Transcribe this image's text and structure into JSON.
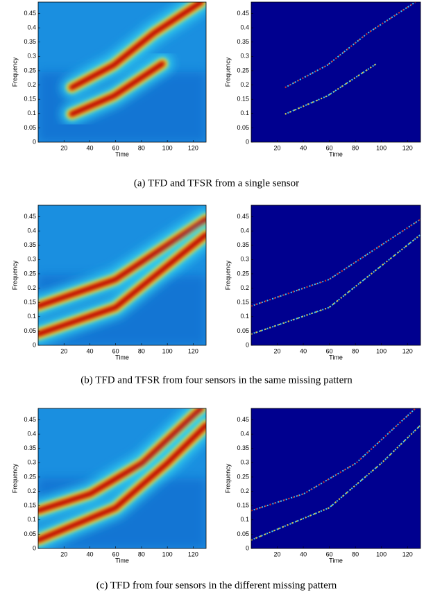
{
  "chart_data": [
    {
      "type": "heatmap",
      "xlabel": "Time",
      "ylabel": "Frequency",
      "xlim": [
        0,
        130
      ],
      "ylim": [
        0,
        0.49
      ],
      "xticks": [
        20,
        40,
        60,
        80,
        100,
        120
      ],
      "yticks": [
        0,
        0.05,
        0.1,
        0.15,
        0.2,
        0.25,
        0.3,
        0.35,
        0.4,
        0.45
      ]
    },
    {
      "type": "heatmap",
      "xlabel": "Time",
      "ylabel": "Frequency",
      "xlim": [
        0,
        130
      ],
      "ylim": [
        0,
        0.49
      ],
      "xticks": [
        20,
        40,
        60,
        80,
        100,
        120
      ],
      "yticks": [
        0,
        0.05,
        0.1,
        0.15,
        0.2,
        0.25,
        0.3,
        0.35,
        0.4,
        0.45
      ]
    },
    {
      "type": "heatmap",
      "xlabel": "Time",
      "ylabel": "Frequency",
      "xlim": [
        0,
        130
      ],
      "ylim": [
        0,
        0.49
      ],
      "xticks": [
        20,
        40,
        60,
        80,
        100,
        120
      ],
      "yticks": [
        0,
        0.05,
        0.1,
        0.15,
        0.2,
        0.25,
        0.3,
        0.35,
        0.4,
        0.45
      ]
    },
    {
      "type": "heatmap",
      "xlabel": "Time",
      "ylabel": "Frequency",
      "xlim": [
        0,
        130
      ],
      "ylim": [
        0,
        0.49
      ],
      "xticks": [
        20,
        40,
        60,
        80,
        100,
        120
      ],
      "yticks": [
        0,
        0.05,
        0.1,
        0.15,
        0.2,
        0.25,
        0.3,
        0.35,
        0.4,
        0.45
      ]
    },
    {
      "type": "heatmap",
      "xlabel": "Time",
      "ylabel": "Frequency",
      "xlim": [
        0,
        130
      ],
      "ylim": [
        0,
        0.49
      ],
      "xticks": [
        20,
        40,
        60,
        80,
        100,
        120
      ],
      "yticks": [
        0,
        0.05,
        0.1,
        0.15,
        0.2,
        0.25,
        0.3,
        0.35,
        0.4,
        0.45
      ]
    },
    {
      "type": "heatmap",
      "xlabel": "Time",
      "ylabel": "Frequency",
      "xlim": [
        0,
        130
      ],
      "ylim": [
        0,
        0.49
      ],
      "xticks": [
        20,
        40,
        60,
        80,
        100,
        120
      ],
      "yticks": [
        0,
        0.05,
        0.1,
        0.15,
        0.2,
        0.25,
        0.3,
        0.35,
        0.4,
        0.45
      ]
    }
  ],
  "captions": [
    "(a) TFD and TFSR from a single sensor",
    "(b) TFD and TFSR from four sensors in the same missing pattern",
    "(c) TFD from four sensors in the different missing pattern"
  ]
}
